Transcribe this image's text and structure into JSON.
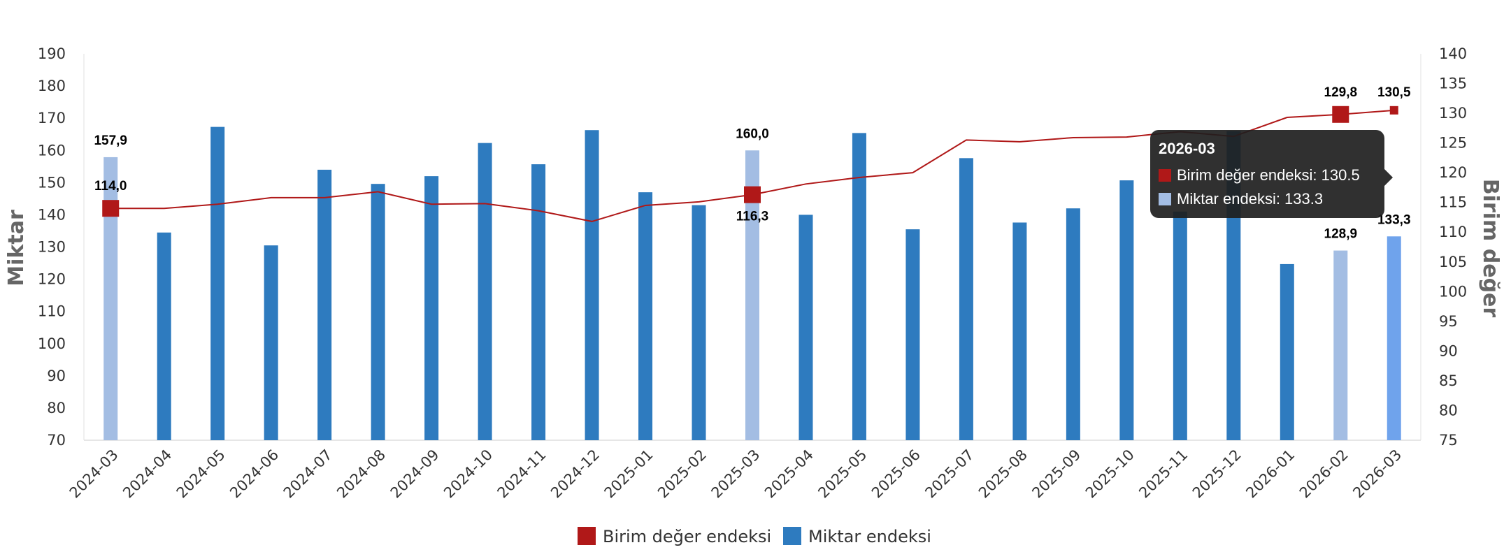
{
  "chart_data": {
    "type": "bar",
    "categories": [
      "2024-03",
      "2024-04",
      "2024-05",
      "2024-06",
      "2024-07",
      "2024-08",
      "2024-09",
      "2024-10",
      "2024-11",
      "2024-12",
      "2025-01",
      "2025-02",
      "2025-03",
      "2025-04",
      "2025-05",
      "2025-06",
      "2025-07",
      "2025-08",
      "2025-09",
      "2025-10",
      "2025-11",
      "2025-12",
      "2026-01",
      "2026-02",
      "2026-03"
    ],
    "series": [
      {
        "name": "Miktar endeksi",
        "type": "bar",
        "axis": "left",
        "color": "#2e7bbf",
        "highlight_color": "#a3bde3",
        "selected_color": "#6fa3ec",
        "values": [
          157.9,
          134.5,
          167.3,
          130.5,
          154.0,
          149.6,
          152.0,
          162.3,
          155.7,
          166.3,
          147.0,
          143.0,
          160.0,
          140.0,
          165.4,
          135.5,
          157.6,
          137.6,
          142.0,
          150.7,
          141.0,
          166.0,
          124.7,
          128.9,
          133.3
        ],
        "highlighted_indices": [
          0,
          12,
          23
        ],
        "selected_index": 24
      },
      {
        "name": "Birim değer endeksi",
        "type": "line",
        "axis": "right",
        "color": "#b01818",
        "values": [
          114.0,
          114.0,
          114.7,
          115.8,
          115.8,
          116.8,
          114.7,
          114.8,
          113.6,
          111.8,
          114.5,
          115.1,
          116.3,
          118.1,
          119.2,
          120.0,
          125.5,
          125.2,
          125.9,
          126.0,
          126.9,
          126.1,
          129.3,
          129.8,
          130.5
        ],
        "marker_indices": [
          0,
          12,
          23,
          24
        ]
      }
    ],
    "data_labels": [
      {
        "series": 0,
        "index": 0,
        "text": "157,9"
      },
      {
        "series": 0,
        "index": 12,
        "text": "160,0"
      },
      {
        "series": 0,
        "index": 23,
        "text": "128,9"
      },
      {
        "series": 0,
        "index": 24,
        "text": "133,3"
      },
      {
        "series": 1,
        "index": 0,
        "text": "114,0"
      },
      {
        "series": 1,
        "index": 12,
        "text": "116,3"
      },
      {
        "series": 1,
        "index": 23,
        "text": "129,8"
      },
      {
        "series": 1,
        "index": 24,
        "text": "130,5"
      }
    ],
    "y_left": {
      "label": "Miktar",
      "min": 70,
      "max": 190,
      "step": 10
    },
    "y_right": {
      "label": "Birim değer",
      "min": 75,
      "max": 140,
      "step": 5
    },
    "legend": {
      "position": "bottom",
      "items": [
        "Birim değer endeksi",
        "Miktar endeksi"
      ]
    },
    "grid": false
  },
  "tooltip": {
    "title": "2026-03",
    "rows": [
      {
        "label": "Birim değer endeksi: 130.5",
        "color": "#b01818"
      },
      {
        "label": "Miktar endeksi: 133.3",
        "color": "#a3bde3"
      }
    ]
  }
}
